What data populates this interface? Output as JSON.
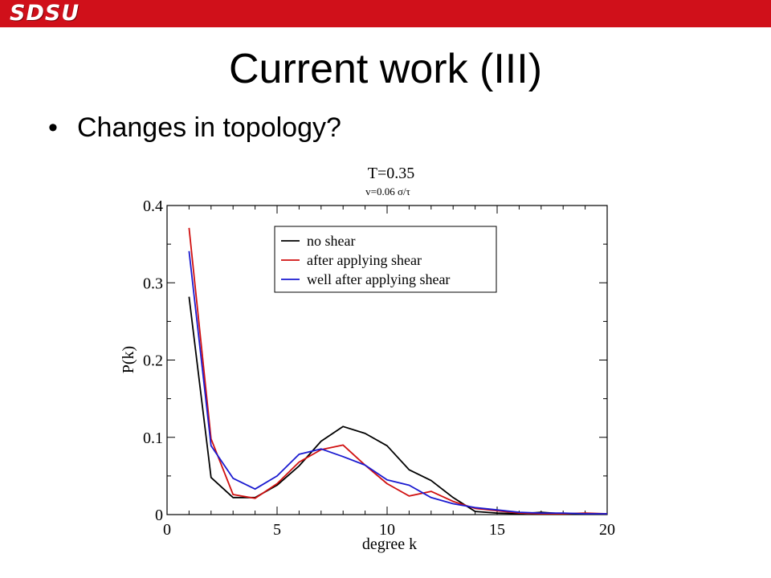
{
  "header": {
    "logo_text": "SDSU",
    "bar_color": "#d0101a"
  },
  "slide": {
    "title": "Current work (III)",
    "bullets": [
      "Changes in topology?"
    ]
  },
  "chart_data": {
    "type": "line",
    "title": "T=0.35",
    "subtitle": "v=0.06 σ/τ",
    "xlabel": "degree k",
    "ylabel": "P(k)",
    "xlim": [
      0,
      20
    ],
    "ylim": [
      0,
      0.4
    ],
    "xticks": [
      0,
      5,
      10,
      15,
      20
    ],
    "yticks": [
      0,
      0.1,
      0.2,
      0.3,
      0.4
    ],
    "ytick_labels": [
      "0",
      "0.1",
      "0.2",
      "0.3",
      "0.4"
    ],
    "grid": false,
    "legend_position": "top-right",
    "series": [
      {
        "name": "no shear",
        "color": "#000000",
        "x": [
          1,
          2,
          3,
          4,
          5,
          6,
          7,
          8,
          9,
          10,
          11,
          12,
          13,
          14,
          15,
          16,
          17,
          18,
          19,
          20
        ],
        "values": [
          0.282,
          0.048,
          0.022,
          0.022,
          0.038,
          0.063,
          0.095,
          0.114,
          0.105,
          0.089,
          0.058,
          0.044,
          0.022,
          0.004,
          0.002,
          0.001,
          0.003,
          0.001,
          0.001,
          0.001
        ]
      },
      {
        "name": "after applying shear",
        "color": "#d01010",
        "x": [
          1,
          2,
          3,
          4,
          5,
          6,
          7,
          8,
          9,
          10,
          11,
          12,
          13,
          14,
          15,
          16,
          17,
          18,
          19,
          20
        ],
        "values": [
          0.371,
          0.098,
          0.026,
          0.021,
          0.04,
          0.068,
          0.084,
          0.09,
          0.064,
          0.04,
          0.024,
          0.03,
          0.017,
          0.008,
          0.005,
          0.002,
          0.001,
          0.001,
          0.002,
          0.001
        ]
      },
      {
        "name": "well after applying shear",
        "color": "#1a1ad0",
        "x": [
          1,
          2,
          3,
          4,
          5,
          6,
          7,
          8,
          9,
          10,
          11,
          12,
          13,
          14,
          15,
          16,
          17,
          18,
          19,
          20
        ],
        "values": [
          0.341,
          0.089,
          0.047,
          0.033,
          0.05,
          0.078,
          0.085,
          0.075,
          0.064,
          0.045,
          0.038,
          0.022,
          0.014,
          0.009,
          0.006,
          0.003,
          0.002,
          0.002,
          0.001,
          0.001
        ]
      }
    ]
  }
}
